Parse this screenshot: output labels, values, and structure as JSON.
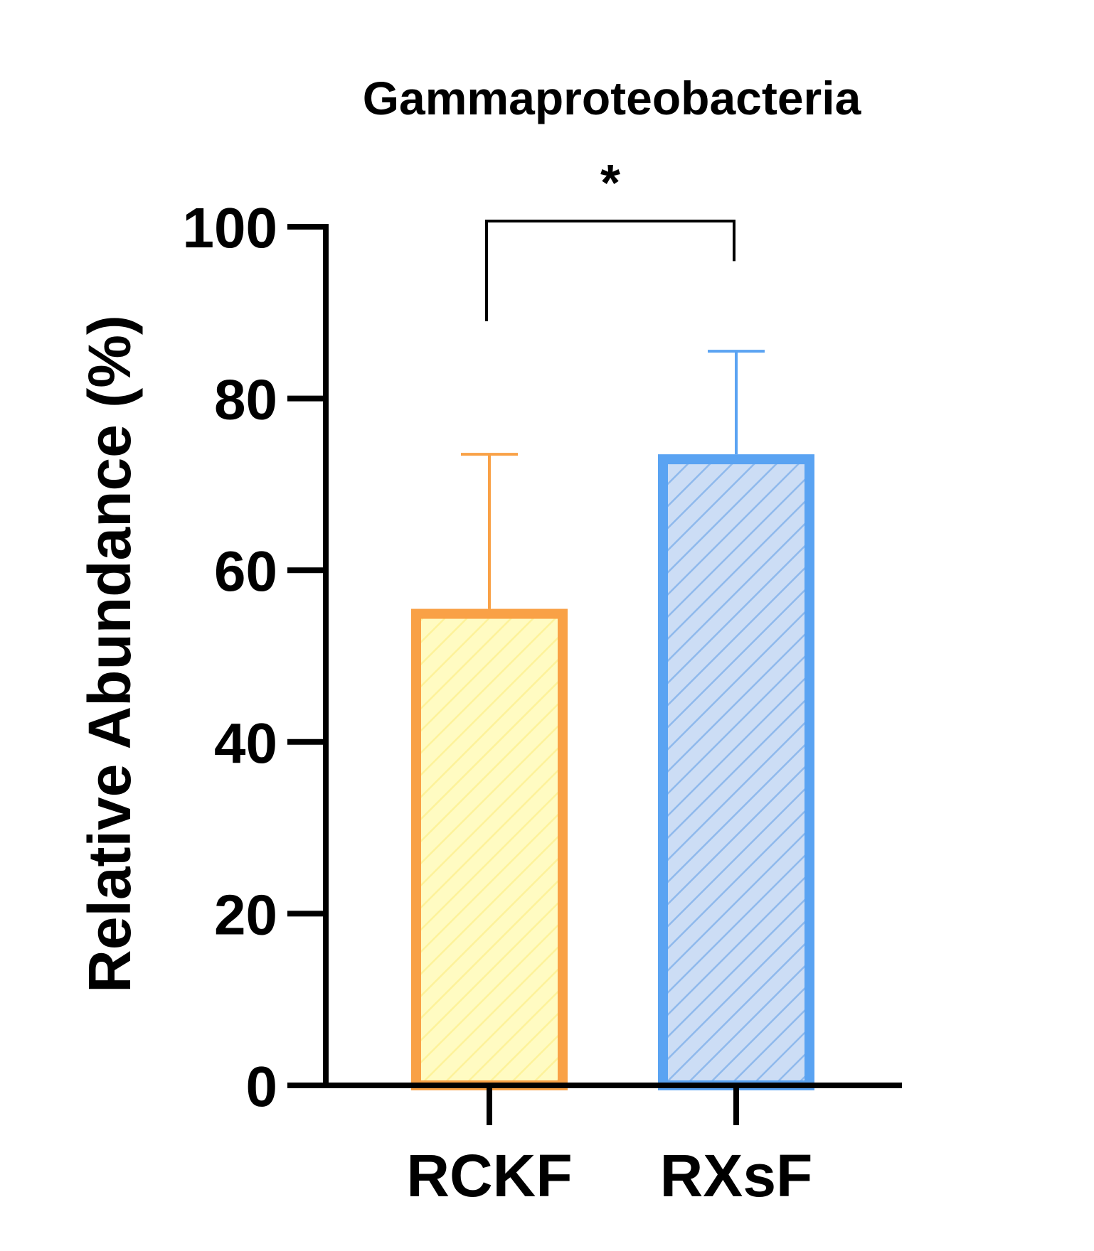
{
  "chart_data": {
    "type": "bar",
    "title": "Gammaproteobacteria",
    "xlabel": "",
    "ylabel": "Relative Abundance (%)",
    "ylim": [
      0,
      100
    ],
    "yticks": [
      0,
      20,
      40,
      60,
      80,
      100
    ],
    "grid": false,
    "categories": [
      "RCKF",
      "RXsF"
    ],
    "values": [
      55.5,
      73.5
    ],
    "error_upper": [
      73.5,
      85.5
    ],
    "colors": {
      "RCKF": {
        "edge": "#F9A146",
        "fill": "#FFFBC2",
        "hatch": "#FDF29A"
      },
      "RXsF": {
        "edge": "#5AA3F2",
        "fill": "#CCDDF5",
        "hatch": "#8FB9EC"
      }
    },
    "significance": {
      "between": [
        "RCKF",
        "RXsF"
      ],
      "label": "*"
    }
  }
}
